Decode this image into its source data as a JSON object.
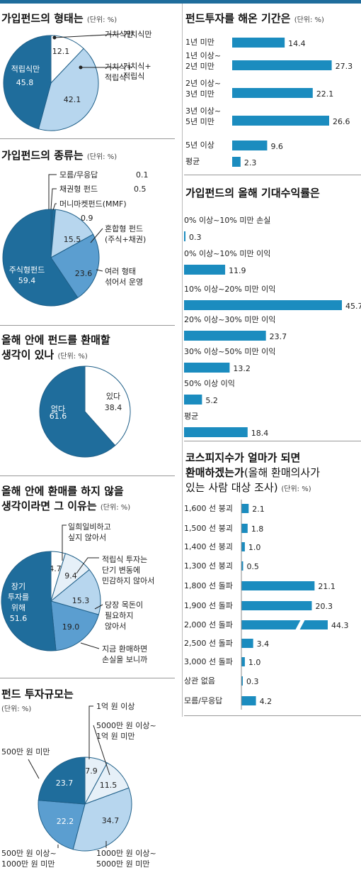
{
  "colors": {
    "dark": "#1f6d9c",
    "mid": "#5b9ed0",
    "light": "#b7d6ee",
    "pale": "#e6f0f8",
    "white": "#ffffff",
    "bar": "#1b8cbf"
  },
  "pie1": {
    "title": "가입펀드의 형태는",
    "unit": "(단위: %)"
  },
  "pie2": {
    "title": "가입펀드의 종류는",
    "unit": "(단위: %)"
  },
  "pie3": {
    "title1": "올해 안에 펀드를 환매할",
    "title2": "생각이 있나",
    "unit": "(단위: %)"
  },
  "pie4": {
    "title1": "올해 안에 환매를 하지 않을",
    "title2": "생각이라면 그 이유는",
    "unit": "(단위: %)"
  },
  "pie5": {
    "title": "펀드 투자규모는",
    "unit": "(단위: %)"
  },
  "bar1": {
    "title": "펀드투자를 해온 기간은",
    "unit": "(단위: %)"
  },
  "bar2": {
    "title": "가입펀드의 올해 기대수익률은",
    "unit": "(단위: %)"
  },
  "bar3": {
    "title1": "코스피지수가 얼마가 되면",
    "title2a": "환매하겠는가",
    "title2b": "(올해 환매의사가",
    "title3": "있는 사람 대상 조사)",
    "unit": "(단위: %)"
  },
  "chart_data": [
    {
      "type": "pie",
      "slices": [
        {
          "label": "거치식만",
          "value": 12.1
        },
        {
          "label": "거치식+ 적립식",
          "value": 42.1
        },
        {
          "label": "적립식만",
          "value": 45.8
        }
      ]
    },
    {
      "type": "pie",
      "slices": [
        {
          "label": "모름/무응답",
          "value": 0.1
        },
        {
          "label": "채권형 펀드",
          "value": 0.5
        },
        {
          "label": "머니마켓펀드(MMF)",
          "value": 0.9
        },
        {
          "label": "혼합형 펀드 (주식+채권)",
          "value": 15.5
        },
        {
          "label": "여러 형태 섞어서 운영",
          "value": 23.6
        },
        {
          "label": "주식형펀드",
          "value": 59.4
        }
      ]
    },
    {
      "type": "pie",
      "slices": [
        {
          "label": "있다",
          "value": 38.4
        },
        {
          "label": "없다",
          "value": 61.6
        }
      ]
    },
    {
      "type": "pie",
      "slices": [
        {
          "label": "일희일비하고 싶지 않아서",
          "value": 4.7
        },
        {
          "label": "적립식 투자는 단기 변동에 민감하지 않아서",
          "value": 9.4
        },
        {
          "label": "당장 목돈이 필요하지 않아서",
          "value": 15.3
        },
        {
          "label": "지금 환매하면 손실을 보니까",
          "value": 19.0
        },
        {
          "label": "장기 투자를 위해",
          "value": 51.6
        }
      ]
    },
    {
      "type": "pie",
      "slices": [
        {
          "label": "1억 원 이상",
          "value": 7.9
        },
        {
          "label": "5000만 원 이상~ 1억 원 미만",
          "value": 11.5
        },
        {
          "label": "1000만 원 이상~ 5000만 원 미만",
          "value": 34.7
        },
        {
          "label": "500만 원 이상~ 1000만 원 미만",
          "value": 22.2
        },
        {
          "label": "500만 원 미만",
          "value": 23.7
        }
      ]
    },
    {
      "type": "bar",
      "orientation": "horizontal",
      "categories": [
        "1년 미만",
        "1년 이상~ 2년 미만",
        "2년 이상~ 3년 미만",
        "3년 이상~ 5년 미만",
        "5년 이상",
        "평균"
      ],
      "values": [
        14.4,
        27.3,
        22.1,
        26.6,
        9.6,
        2.3
      ]
    },
    {
      "type": "bar",
      "orientation": "horizontal",
      "categories": [
        "0% 이상~10% 미만 손실",
        "0% 이상~10% 미만 이익",
        "10% 이상~20% 미만 이익",
        "20% 이상~30% 미만 이익",
        "30% 이상~50% 미만 이익",
        "50% 이상 이익",
        "평균"
      ],
      "values": [
        0.3,
        11.9,
        45.7,
        23.7,
        13.2,
        5.2,
        18.4
      ]
    },
    {
      "type": "bar",
      "orientation": "horizontal",
      "categories": [
        "1,600 선 붕괴",
        "1,500 선 붕괴",
        "1,400 선 붕괴",
        "1,300 선 붕괴",
        "1,800 선 돌파",
        "1,900 선 돌파",
        "2,000 선 돌파",
        "2,500 선 돌파",
        "3,000 선 돌파",
        "상관 없음",
        "모름/무응답"
      ],
      "values": [
        2.1,
        1.8,
        1.0,
        0.5,
        21.1,
        20.3,
        44.3,
        3.4,
        1.0,
        0.3,
        4.2
      ],
      "axis_break": "2,000 선 돌파"
    }
  ]
}
